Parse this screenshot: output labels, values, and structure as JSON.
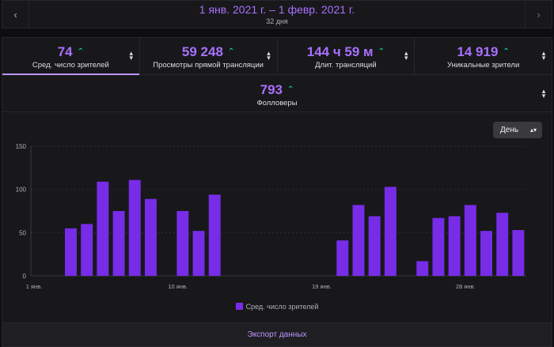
{
  "header": {
    "date_range": "1 янв. 2021 г. – 1 февр. 2021 г.",
    "days": "32 дня",
    "prev_icon": "‹",
    "next_icon": "›"
  },
  "stats": [
    {
      "value": "74",
      "label": "Сред. число зрителей",
      "trend": "up"
    },
    {
      "value": "59 248",
      "label": "Просмотры прямой трансляции",
      "trend": "up"
    },
    {
      "value": "144 ч 59 м",
      "label": "Длит. трансляций",
      "trend": "up"
    },
    {
      "value": "14 919",
      "label": "Уникальные зрители",
      "trend": "up"
    }
  ],
  "followers": {
    "value": "793",
    "label": "Фолловеры",
    "trend": "up"
  },
  "interval_select": {
    "selected": "День"
  },
  "export_label": "Экспорт данных",
  "colors": {
    "accent": "#a970ff",
    "bar": "#772ce8",
    "trend_up": "#00d6a8"
  },
  "chart_data": {
    "type": "bar",
    "x": [
      "1 янв.",
      "2 янв.",
      "3 янв.",
      "4 янв.",
      "5 янв.",
      "6 янв.",
      "7 янв.",
      "8 янв.",
      "9 янв.",
      "10 янв.",
      "11 янв.",
      "12 янв.",
      "13 янв.",
      "14 янв.",
      "15 янв.",
      "16 янв.",
      "17 янв.",
      "18 янв.",
      "19 янв.",
      "20 янв.",
      "21 янв.",
      "22 янв.",
      "23 янв.",
      "24 янв.",
      "25 янв.",
      "26 янв.",
      "27 янв.",
      "28 янв.",
      "29 янв.",
      "30 янв.",
      "31 янв."
    ],
    "values": [
      0,
      0,
      55,
      60,
      109,
      75,
      111,
      89,
      0,
      75,
      52,
      94,
      0,
      0,
      0,
      0,
      0,
      0,
      0,
      41,
      82,
      69,
      103,
      0,
      17,
      67,
      69,
      82,
      52,
      73,
      53
    ],
    "xticks": [
      "1 янв.",
      "10 янв.",
      "19 янв.",
      "28 янв."
    ],
    "yticks": [
      0,
      50,
      100,
      150
    ],
    "ylim": [
      0,
      150
    ],
    "grid": true,
    "legend": [
      "Сред. число зрителей"
    ]
  }
}
